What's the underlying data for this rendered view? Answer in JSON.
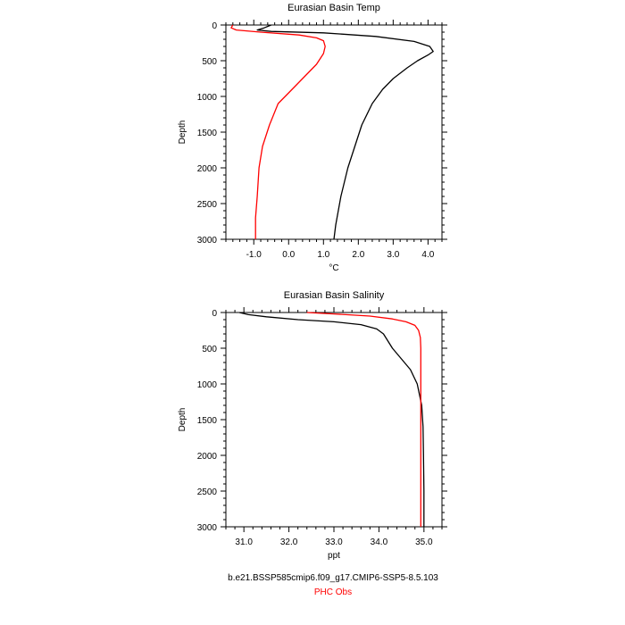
{
  "chart_data": [
    {
      "type": "line",
      "title": "Eurasian Basin Temp",
      "xlabel": "°C",
      "ylabel": "Depth",
      "xlim": [
        -1.8,
        4.4
      ],
      "ylim": [
        3000,
        0
      ],
      "x_ticks": [
        -1.0,
        0.0,
        1.0,
        2.0,
        3.0,
        4.0
      ],
      "x_tick_labels": [
        "-1.0",
        "0.0",
        "1.0",
        "2.0",
        "3.0",
        "4.0"
      ],
      "y_ticks": [
        0,
        500,
        1000,
        1500,
        2000,
        2500,
        3000
      ],
      "y_tick_labels": [
        "0",
        "500",
        "1000",
        "1500",
        "2000",
        "2500",
        "3000"
      ],
      "grid": false,
      "series": [
        {
          "name": "b.e21.BSSP585cmip6.f09_g17.CMIP6-SSP5-8.5.103",
          "color": "#000000",
          "points": [
            [
              -0.5,
              0
            ],
            [
              -0.7,
              40
            ],
            [
              -0.9,
              70
            ],
            [
              -0.5,
              90
            ],
            [
              1.0,
              110
            ],
            [
              2.5,
              160
            ],
            [
              3.6,
              230
            ],
            [
              4.05,
              300
            ],
            [
              4.15,
              370
            ],
            [
              4.0,
              420
            ],
            [
              3.7,
              500
            ],
            [
              3.4,
              600
            ],
            [
              3.0,
              750
            ],
            [
              2.7,
              900
            ],
            [
              2.4,
              1100
            ],
            [
              2.1,
              1400
            ],
            [
              1.9,
              1700
            ],
            [
              1.7,
              2000
            ],
            [
              1.5,
              2400
            ],
            [
              1.35,
              2800
            ],
            [
              1.3,
              3000
            ]
          ]
        },
        {
          "name": "PHC Obs",
          "color": "#ff0000",
          "points": [
            [
              -1.6,
              0
            ],
            [
              -1.65,
              40
            ],
            [
              -1.5,
              70
            ],
            [
              -0.8,
              100
            ],
            [
              0.3,
              140
            ],
            [
              0.8,
              180
            ],
            [
              1.0,
              220
            ],
            [
              1.05,
              300
            ],
            [
              1.0,
              400
            ],
            [
              0.8,
              550
            ],
            [
              0.4,
              750
            ],
            [
              0.0,
              950
            ],
            [
              -0.3,
              1100
            ],
            [
              -0.55,
              1400
            ],
            [
              -0.75,
              1700
            ],
            [
              -0.85,
              2000
            ],
            [
              -0.9,
              2400
            ],
            [
              -0.95,
              2700
            ],
            [
              -0.95,
              3000
            ]
          ]
        }
      ]
    },
    {
      "type": "line",
      "title": "Eurasian Basin Salinity",
      "xlabel": "ppt",
      "ylabel": "Depth",
      "xlim": [
        30.6,
        35.4
      ],
      "ylim": [
        3000,
        0
      ],
      "x_ticks": [
        31.0,
        32.0,
        33.0,
        34.0,
        35.0
      ],
      "x_tick_labels": [
        "31.0",
        "32.0",
        "33.0",
        "34.0",
        "35.0"
      ],
      "y_ticks": [
        0,
        500,
        1000,
        1500,
        2000,
        2500,
        3000
      ],
      "y_tick_labels": [
        "0",
        "500",
        "1000",
        "1500",
        "2000",
        "2500",
        "3000"
      ],
      "grid": false,
      "series": [
        {
          "name": "b.e21.BSSP585cmip6.f09_g17.CMIP6-SSP5-8.5.103",
          "color": "#000000",
          "points": [
            [
              30.9,
              0
            ],
            [
              31.1,
              30
            ],
            [
              31.5,
              60
            ],
            [
              32.2,
              100
            ],
            [
              33.0,
              130
            ],
            [
              33.6,
              170
            ],
            [
              33.95,
              230
            ],
            [
              34.1,
              300
            ],
            [
              34.2,
              400
            ],
            [
              34.3,
              500
            ],
            [
              34.5,
              650
            ],
            [
              34.7,
              800
            ],
            [
              34.85,
              1000
            ],
            [
              34.95,
              1300
            ],
            [
              34.98,
              1600
            ],
            [
              34.99,
              2000
            ],
            [
              35.0,
              2500
            ],
            [
              35.0,
              3000
            ]
          ]
        },
        {
          "name": "PHC Obs",
          "color": "#ff0000",
          "points": [
            [
              32.4,
              0
            ],
            [
              33.0,
              20
            ],
            [
              33.8,
              50
            ],
            [
              34.3,
              90
            ],
            [
              34.6,
              130
            ],
            [
              34.8,
              180
            ],
            [
              34.88,
              250
            ],
            [
              34.92,
              350
            ],
            [
              34.93,
              500
            ],
            [
              34.93,
              1000
            ],
            [
              34.93,
              2000
            ],
            [
              34.93,
              3000
            ]
          ]
        }
      ]
    }
  ],
  "legend": {
    "model_label": "b.e21.BSSP585cmip6.f09_g17.CMIP6-SSP5-8.5.103",
    "model_color": "#000000",
    "obs_label": "PHC Obs",
    "obs_color": "#ff0000"
  }
}
